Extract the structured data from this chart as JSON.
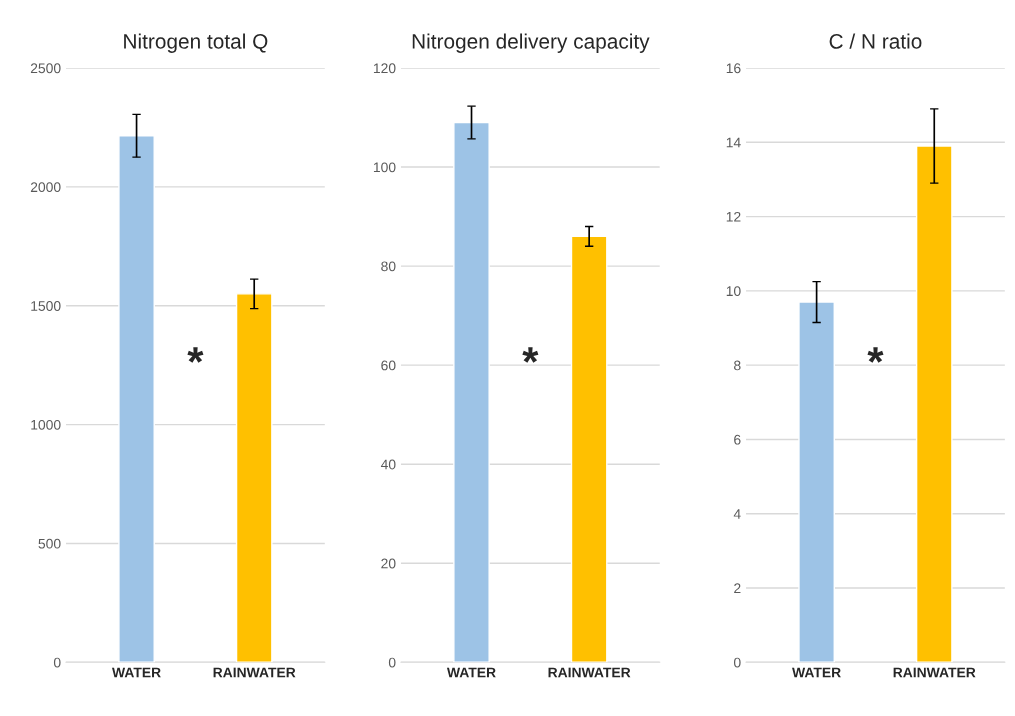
{
  "chart_data": [
    {
      "type": "bar",
      "title": "Nitrogen total Q",
      "categories": [
        "WATER",
        "RAINWATER"
      ],
      "values": [
        2215,
        1550
      ],
      "colors": [
        "#9dc3e6",
        "#ffc000"
      ],
      "errors": [
        90,
        62
      ],
      "ylim": [
        0,
        2500
      ],
      "yticks": [
        0,
        500,
        1000,
        1500,
        2000,
        2500
      ],
      "grid": "y",
      "annotations": [
        "*"
      ]
    },
    {
      "type": "bar",
      "title": "Nitrogen delivery capacity",
      "categories": [
        "WATER",
        "RAINWATER"
      ],
      "values": [
        109,
        86
      ],
      "colors": [
        "#9dc3e6",
        "#ffc000"
      ],
      "errors": [
        3.3,
        2
      ],
      "ylim": [
        0,
        120
      ],
      "yticks": [
        0,
        20,
        40,
        60,
        80,
        100,
        120
      ],
      "grid": "y",
      "annotations": [
        "*"
      ]
    },
    {
      "type": "bar",
      "title": "C / N ratio",
      "categories": [
        "WATER",
        "RAINWATER"
      ],
      "values": [
        9.7,
        13.9
      ],
      "colors": [
        "#9dc3e6",
        "#ffc000"
      ],
      "errors": [
        0.55,
        1.0
      ],
      "ylim": [
        0,
        16
      ],
      "yticks": [
        0,
        2,
        4,
        6,
        8,
        10,
        12,
        14,
        16
      ],
      "grid": "y",
      "annotations": [
        "*"
      ]
    }
  ]
}
